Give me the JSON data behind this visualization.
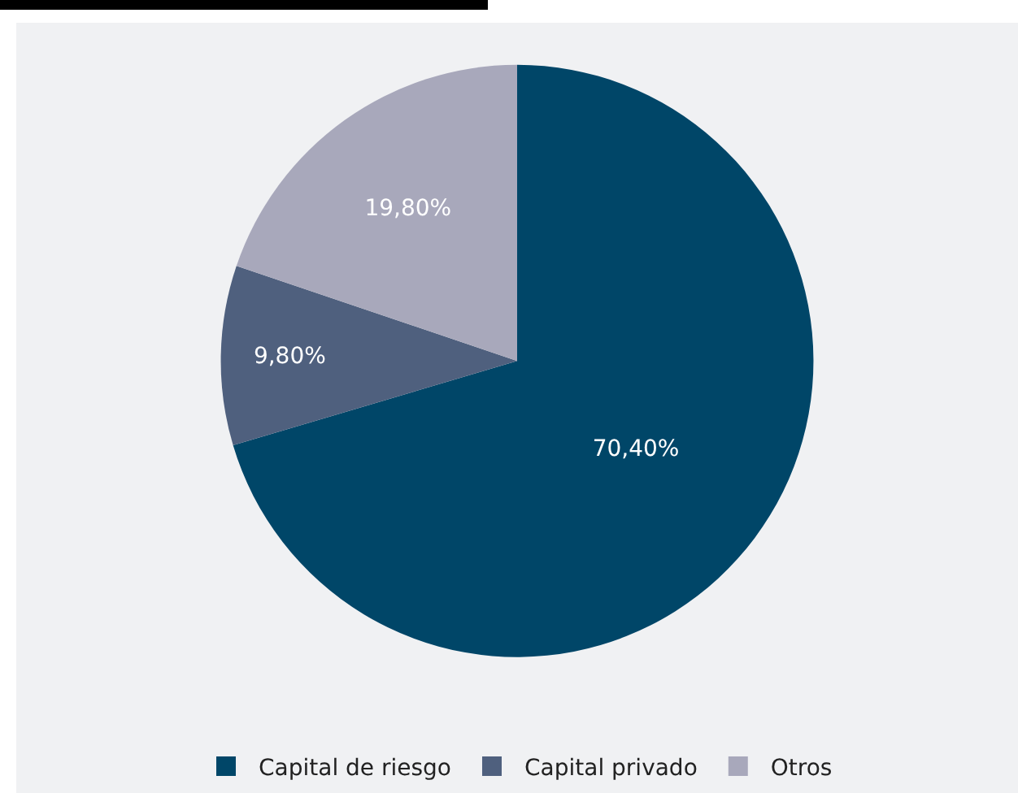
{
  "chart_data": {
    "type": "pie",
    "categories": [
      "Capital de riesgo",
      "Capital privado",
      "Otros"
    ],
    "values": [
      70.4,
      9.8,
      19.8
    ],
    "colors": [
      "#004668",
      "#4f607e",
      "#a8a8bb"
    ],
    "value_labels": [
      "70,40%",
      "9,80%",
      "19,80%"
    ],
    "legend": "bottom"
  }
}
